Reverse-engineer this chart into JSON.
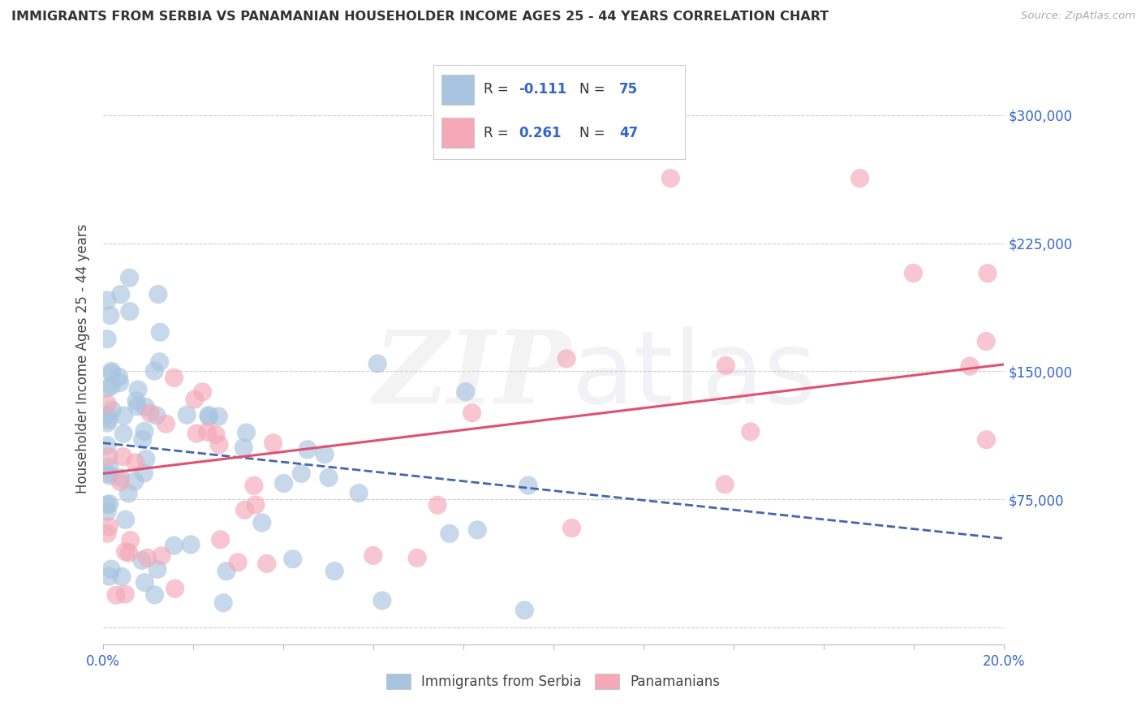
{
  "title": "IMMIGRANTS FROM SERBIA VS PANAMANIAN HOUSEHOLDER INCOME AGES 25 - 44 YEARS CORRELATION CHART",
  "source": "Source: ZipAtlas.com",
  "ylabel": "Householder Income Ages 25 - 44 years",
  "xlim": [
    0.0,
    0.2
  ],
  "ylim": [
    -10000,
    325000
  ],
  "ytick_positions": [
    0,
    75000,
    150000,
    225000,
    300000
  ],
  "ytick_labels_right": [
    "",
    "$75,000",
    "$150,000",
    "$225,000",
    "$300,000"
  ],
  "xtick_positions": [
    0.0,
    0.02,
    0.04,
    0.06,
    0.08,
    0.1,
    0.12,
    0.14,
    0.16,
    0.18,
    0.2
  ],
  "xtick_labels": [
    "0.0%",
    "",
    "",
    "",
    "",
    "",
    "",
    "",
    "",
    "",
    "20.0%"
  ],
  "watermark_zip": "ZIP",
  "watermark_atlas": "atlas",
  "legend_r1": "R = ",
  "legend_v1": "-0.111",
  "legend_n1_label": "N = ",
  "legend_n1_val": "75",
  "legend_r2": "R = ",
  "legend_v2": "0.261",
  "legend_n2_label": "N = ",
  "legend_n2_val": "47",
  "blue_fill": "#A8C4E0",
  "pink_fill": "#F4A8B8",
  "blue_line_color": "#4466AA",
  "pink_line_color": "#E05070",
  "text_blue": "#3366CC",
  "text_dark": "#444444",
  "grid_color": "#CCCCCC",
  "blue_intercept": 108000,
  "blue_slope": -280000,
  "pink_intercept": 90000,
  "pink_slope": 320000,
  "serbia_seed": 77,
  "panama_seed": 88
}
